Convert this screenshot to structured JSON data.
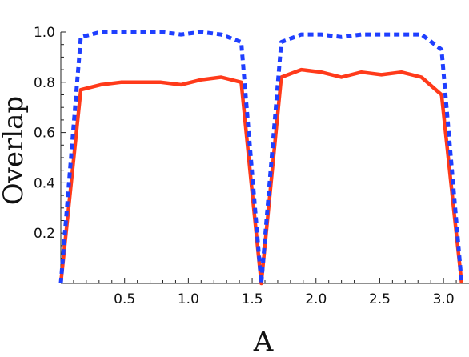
{
  "chart_data": {
    "type": "line",
    "title": "",
    "xlabel": "A",
    "ylabel": "Overlap",
    "xlim": [
      0,
      3.2
    ],
    "ylim": [
      0,
      1.0
    ],
    "grid": false,
    "x_ticks": [
      0.5,
      1.0,
      1.5,
      2.0,
      2.5,
      3.0
    ],
    "x_tick_labels": [
      "0.5",
      "1.0",
      "1.5",
      "2.0",
      "2.5",
      "3.0"
    ],
    "y_ticks": [
      0.2,
      0.4,
      0.6,
      0.8,
      1.0
    ],
    "y_tick_labels": [
      "0.2",
      "0.4",
      "0.6",
      "0.8",
      "1.0"
    ],
    "series": [
      {
        "color": "#1f3fff",
        "style": "dotted",
        "x": [
          0,
          0.157,
          0.314,
          0.471,
          0.628,
          0.785,
          0.942,
          1.1,
          1.257,
          1.414,
          1.571,
          1.728,
          1.885,
          2.042,
          2.199,
          2.356,
          2.513,
          2.67,
          2.827,
          2.985,
          3.142
        ],
        "y": [
          0.0,
          0.98,
          1.0,
          1.0,
          1.0,
          1.0,
          0.99,
          1.0,
          0.99,
          0.96,
          0.0,
          0.96,
          0.99,
          0.99,
          0.98,
          0.99,
          0.99,
          0.99,
          0.99,
          0.93,
          0.0
        ]
      },
      {
        "color": "#ff3a1a",
        "style": "solid",
        "x": [
          0,
          0.157,
          0.314,
          0.471,
          0.628,
          0.785,
          0.942,
          1.1,
          1.257,
          1.414,
          1.571,
          1.728,
          1.885,
          2.042,
          2.199,
          2.356,
          2.513,
          2.67,
          2.827,
          2.985,
          3.142
        ],
        "y": [
          0.0,
          0.77,
          0.79,
          0.8,
          0.8,
          0.8,
          0.79,
          0.81,
          0.82,
          0.8,
          0.0,
          0.82,
          0.85,
          0.84,
          0.82,
          0.84,
          0.83,
          0.84,
          0.82,
          0.75,
          0.0
        ]
      }
    ]
  }
}
